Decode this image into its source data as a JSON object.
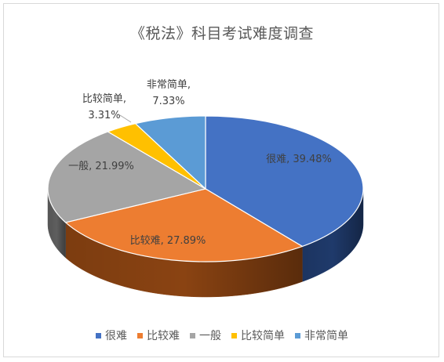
{
  "chart_data": {
    "type": "pie",
    "title": "《税法》科目考试难度调查",
    "slices": [
      {
        "name": "很难",
        "value": 39.48,
        "label": "很难, 39.48%",
        "color": "#4472c4",
        "dark": "#1f3a6b"
      },
      {
        "name": "比较难",
        "value": 27.89,
        "label": "比较难, 27.89%",
        "color": "#ed7d31",
        "dark": "#8a4312"
      },
      {
        "name": "一般",
        "value": 21.99,
        "label": "一般, 21.99%",
        "color": "#a5a5a5",
        "dark": "#5e5e5e"
      },
      {
        "name": "比较简单",
        "value": 3.31,
        "label_lines": [
          "比较简单,",
          "3.31%"
        ],
        "color": "#ffc000",
        "dark": "#8f6b00"
      },
      {
        "name": "非常简单",
        "value": 7.33,
        "label_lines": [
          "非常简单,",
          "7.33%"
        ],
        "color": "#5b9bd5",
        "dark": "#2a5a88"
      }
    ],
    "legend": [
      "很难",
      "比较难",
      "一般",
      "比较简单",
      "非常简单"
    ],
    "legend_position": "bottom"
  }
}
